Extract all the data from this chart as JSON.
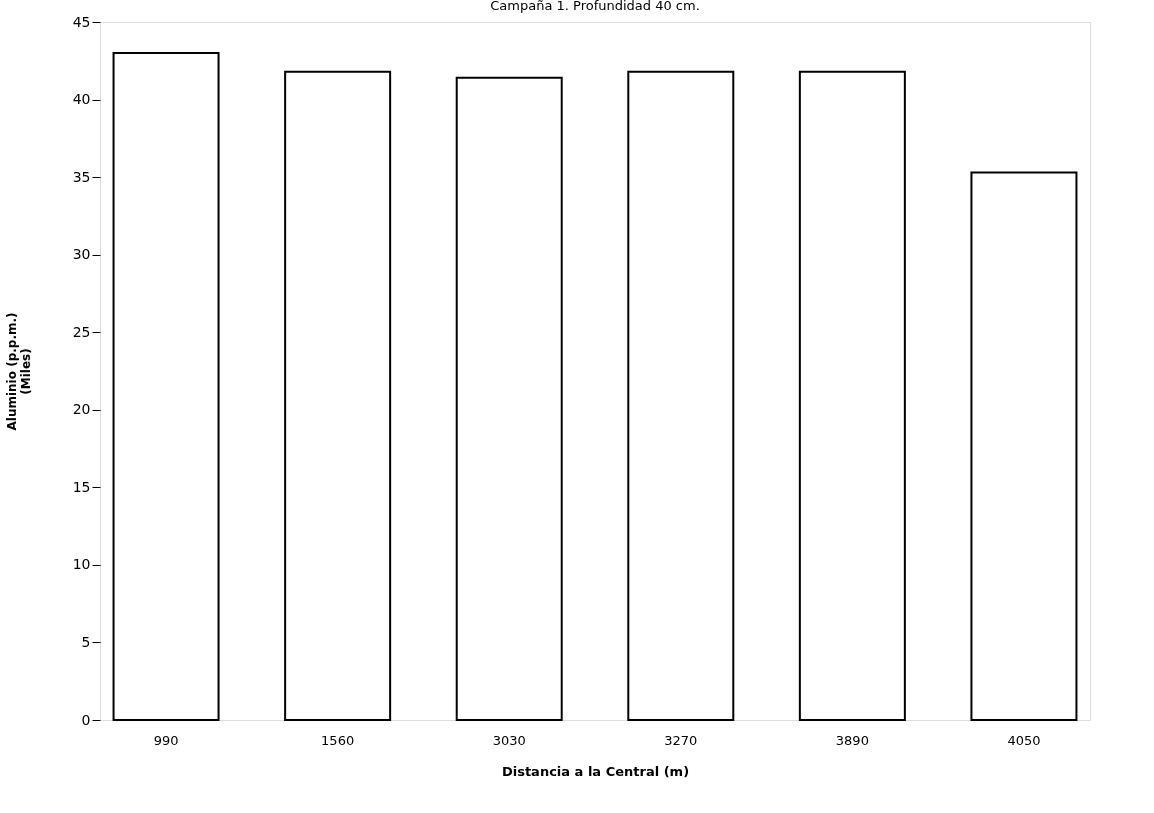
{
  "chart_data": {
    "type": "bar",
    "title": "Campaña 1. Profundidad 40 cm.",
    "xlabel": "Distancia a la Central (m)",
    "ylabel": "Aluminio (p.p.m.)\n(Miles)",
    "categories": [
      "990",
      "1560",
      "3030",
      "3270",
      "3890",
      "4050"
    ],
    "series": [
      {
        "color": "#ffffff",
        "values": [
          43.0,
          41.8,
          41.4,
          41.8,
          41.8,
          35.3
        ]
      }
    ],
    "ylim": [
      0,
      45
    ],
    "yticks": [
      0,
      5,
      10,
      15,
      20,
      25,
      30,
      35,
      40,
      45
    ],
    "grid": false,
    "legend": false
  }
}
